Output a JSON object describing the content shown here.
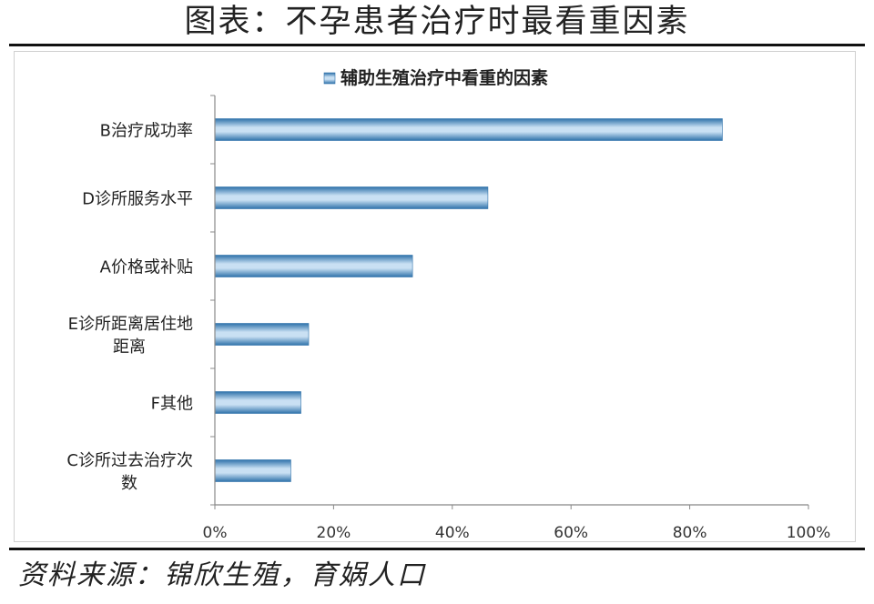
{
  "header": {
    "title": "图表：不孕患者治疗时最看重因素"
  },
  "footer": {
    "source": "资料来源：锦欣生殖，育娲人口"
  },
  "chart_data": {
    "type": "bar",
    "orientation": "horizontal",
    "title": "",
    "categories": [
      "B治疗成功率",
      "D诊所服务水平",
      "A价格或补贴",
      "E诊所距离居住地距离",
      "F其他",
      "C诊所过去治疗次数"
    ],
    "category_lines": [
      [
        "B治疗成功率"
      ],
      [
        "D诊所服务水平"
      ],
      [
        "A价格或补贴"
      ],
      [
        "E诊所距离居住地",
        "距离"
      ],
      [
        "F其他"
      ],
      [
        "C诊所过去治疗次",
        "数"
      ]
    ],
    "series": [
      {
        "name": "辅助生殖治疗中看重的因素",
        "values": [
          85.5,
          46,
          33.3,
          15.8,
          14.5,
          12.8
        ]
      }
    ],
    "xlim": [
      0,
      100
    ],
    "xticks": [
      0,
      20,
      40,
      60,
      80,
      100
    ],
    "xtick_labels": [
      "0%",
      "20%",
      "40%",
      "60%",
      "80%",
      "100%"
    ],
    "legend": "top",
    "grid": false,
    "colors": {
      "bar": "#4a90c8",
      "bar_light": "#c9e0f3",
      "bar_dark": "#2f72aa",
      "axis": "#888888"
    }
  }
}
